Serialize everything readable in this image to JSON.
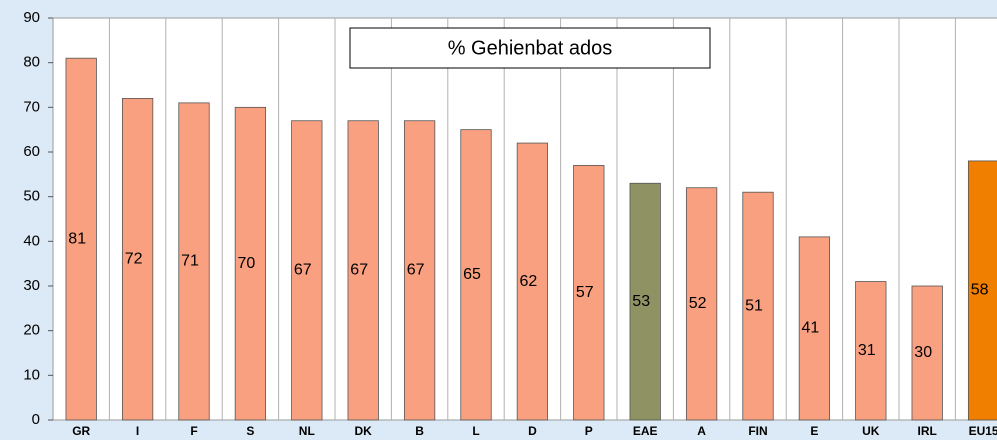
{
  "chart_data": {
    "type": "bar",
    "title": "% Gehienbat ados",
    "categories": [
      "GR",
      "I",
      "F",
      "S",
      "NL",
      "DK",
      "B",
      "L",
      "D",
      "P",
      "EAE",
      "A",
      "FIN",
      "E",
      "UK",
      "IRL",
      "EU15"
    ],
    "values": [
      81,
      72,
      71,
      70,
      67,
      67,
      67,
      65,
      62,
      57,
      53,
      52,
      51,
      41,
      31,
      30,
      58
    ],
    "colors": [
      "#f9a080",
      "#f9a080",
      "#f9a080",
      "#f9a080",
      "#f9a080",
      "#f9a080",
      "#f9a080",
      "#f9a080",
      "#f9a080",
      "#f9a080",
      "#8f9262",
      "#f9a080",
      "#f9a080",
      "#f9a080",
      "#f9a080",
      "#f9a080",
      "#f07f00"
    ],
    "ylim": [
      0,
      90
    ],
    "yticks": [
      0,
      10,
      20,
      30,
      40,
      50,
      60,
      70,
      80,
      90
    ],
    "grid": true
  }
}
